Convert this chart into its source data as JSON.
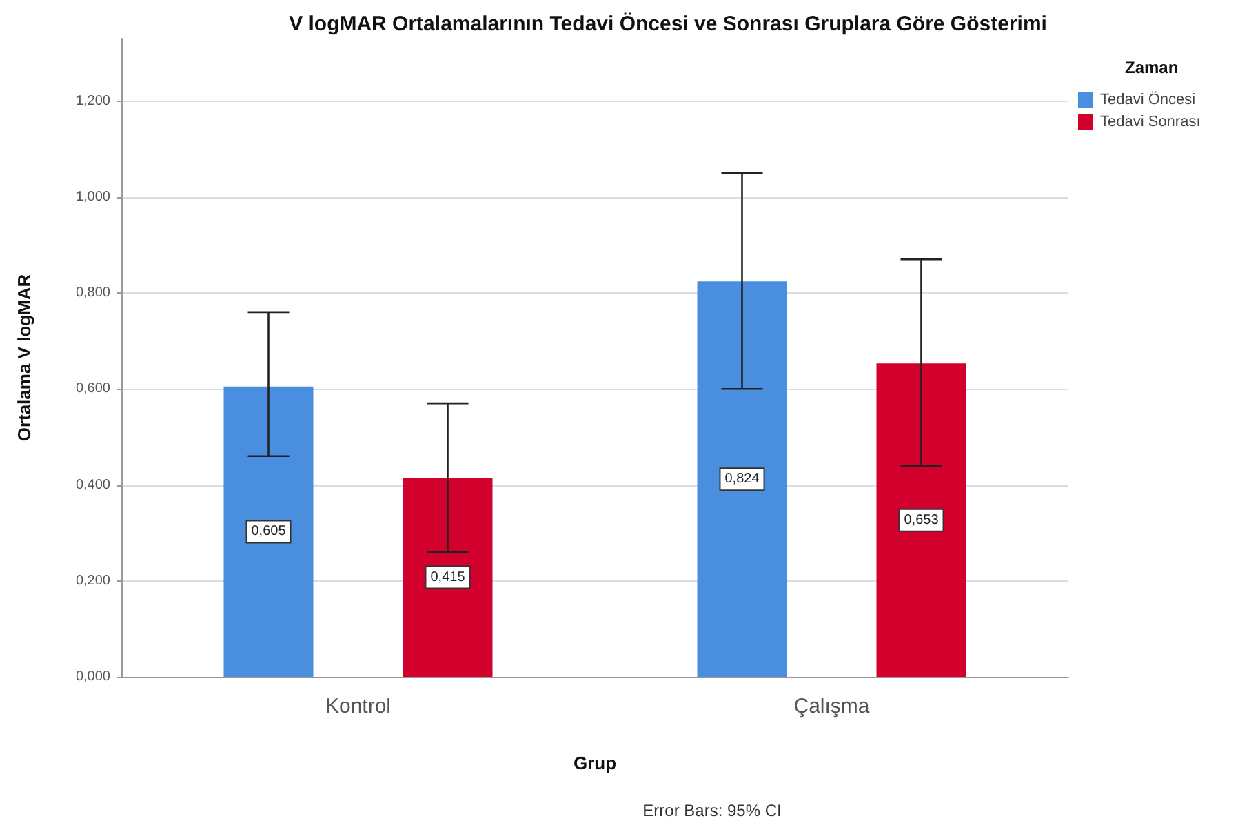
{
  "chart_data": {
    "type": "bar",
    "title": "V logMAR Ortalamalarının Tedavi Öncesi ve Sonrası Gruplara Göre Gösterimi",
    "xlabel": "Grup",
    "ylabel": "Ortalama V logMAR",
    "legend_title": "Zaman",
    "annotations": [
      "Error Bars: 95% CI"
    ],
    "categories": [
      "Kontrol",
      "Çalışma"
    ],
    "series": [
      {
        "name": "Tedavi Öncesi",
        "color": "#4a8fdf",
        "values": [
          0.605,
          0.824
        ],
        "value_labels": [
          "0,605",
          "0,824"
        ],
        "errors": [
          [
            0.46,
            0.76
          ],
          [
            0.6,
            1.05
          ]
        ]
      },
      {
        "name": "Tedavi Sonrası",
        "color": "#d1002c",
        "values": [
          0.415,
          0.653
        ],
        "value_labels": [
          "0,415",
          "0,653"
        ],
        "errors": [
          [
            0.26,
            0.57
          ],
          [
            0.44,
            0.87
          ]
        ]
      }
    ],
    "ylim": [
      0,
      1.33
    ],
    "yticks": [
      {
        "value": 0,
        "label": "0,000"
      },
      {
        "value": 0.2,
        "label": "0,200"
      },
      {
        "value": 0.4,
        "label": "0,400"
      },
      {
        "value": 0.6,
        "label": "0,600"
      },
      {
        "value": 0.8,
        "label": "0,800"
      },
      {
        "value": 1.0,
        "label": "1,000"
      },
      {
        "value": 1.2,
        "label": "1,200"
      }
    ],
    "grid": "y",
    "legend": "top right"
  }
}
